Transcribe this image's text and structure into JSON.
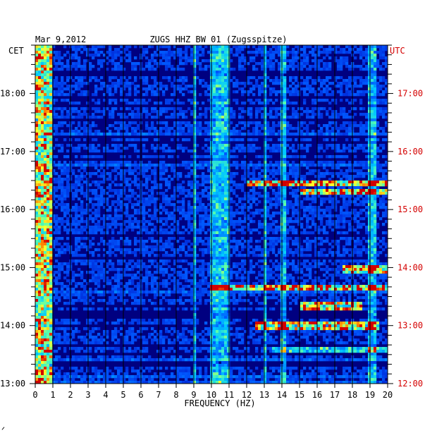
{
  "chart_data": {
    "type": "heatmap",
    "title": "ZUGS HHZ BW 01 (Zugsspitze)",
    "date": "Mar 9,2012",
    "xlabel": "FREQUENCY (HZ)",
    "xlim": [
      0,
      20
    ],
    "x_ticks": [
      "0",
      "1",
      "2",
      "3",
      "4",
      "5",
      "6",
      "7",
      "8",
      "9",
      "10",
      "11",
      "12",
      "13",
      "14",
      "15",
      "16",
      "17",
      "18",
      "19",
      "20"
    ],
    "left_axis_label": "CET",
    "right_axis_label": "UTC",
    "cet_ticks": [
      "18:00",
      "17:00",
      "16:00",
      "15:00",
      "14:00",
      "13:00"
    ],
    "utc_ticks": [
      "17:00",
      "16:00",
      "15:00",
      "14:00",
      "13:00",
      "12:00"
    ],
    "time_range_cet": [
      "13:00",
      "18:50"
    ],
    "colors": {
      "background": "#000080",
      "low": "#0030e0",
      "mid": "#00c8ff",
      "high_yellow": "#ffff30",
      "peak_red": "#e00000",
      "utc_label": "#d40000"
    },
    "energy_bands": [
      {
        "f_from": 0.0,
        "f_to": 0.9,
        "level": "high"
      },
      {
        "f_from": 9.0,
        "f_to": 9.1,
        "level": "medium"
      },
      {
        "f_from": 10.0,
        "f_to": 11.0,
        "level": "medium"
      },
      {
        "f_from": 12.9,
        "f_to": 13.1,
        "level": "medium"
      },
      {
        "f_from": 14.0,
        "f_to": 14.2,
        "level": "medium"
      },
      {
        "f_from": 18.8,
        "f_to": 19.3,
        "level": "medium"
      }
    ],
    "events": [
      {
        "time_cet": "16:27",
        "f_from": 12.0,
        "f_to": 20.0,
        "level": "high"
      },
      {
        "time_cet": "16:18",
        "f_from": 15.0,
        "f_to": 20.0,
        "level": "high"
      },
      {
        "time_cet": "14:58",
        "f_from": 17.5,
        "f_to": 20.0,
        "level": "high"
      },
      {
        "time_cet": "14:40",
        "f_from": 10.0,
        "f_to": 20.0,
        "level": "high"
      },
      {
        "time_cet": "14:20",
        "f_from": 15.0,
        "f_to": 18.5,
        "level": "high"
      },
      {
        "time_cet": "14:00",
        "f_from": 12.5,
        "f_to": 19.5,
        "level": "high"
      },
      {
        "time_cet": "13:35",
        "f_from": 13.5,
        "f_to": 20.0,
        "level": "medium"
      }
    ]
  }
}
